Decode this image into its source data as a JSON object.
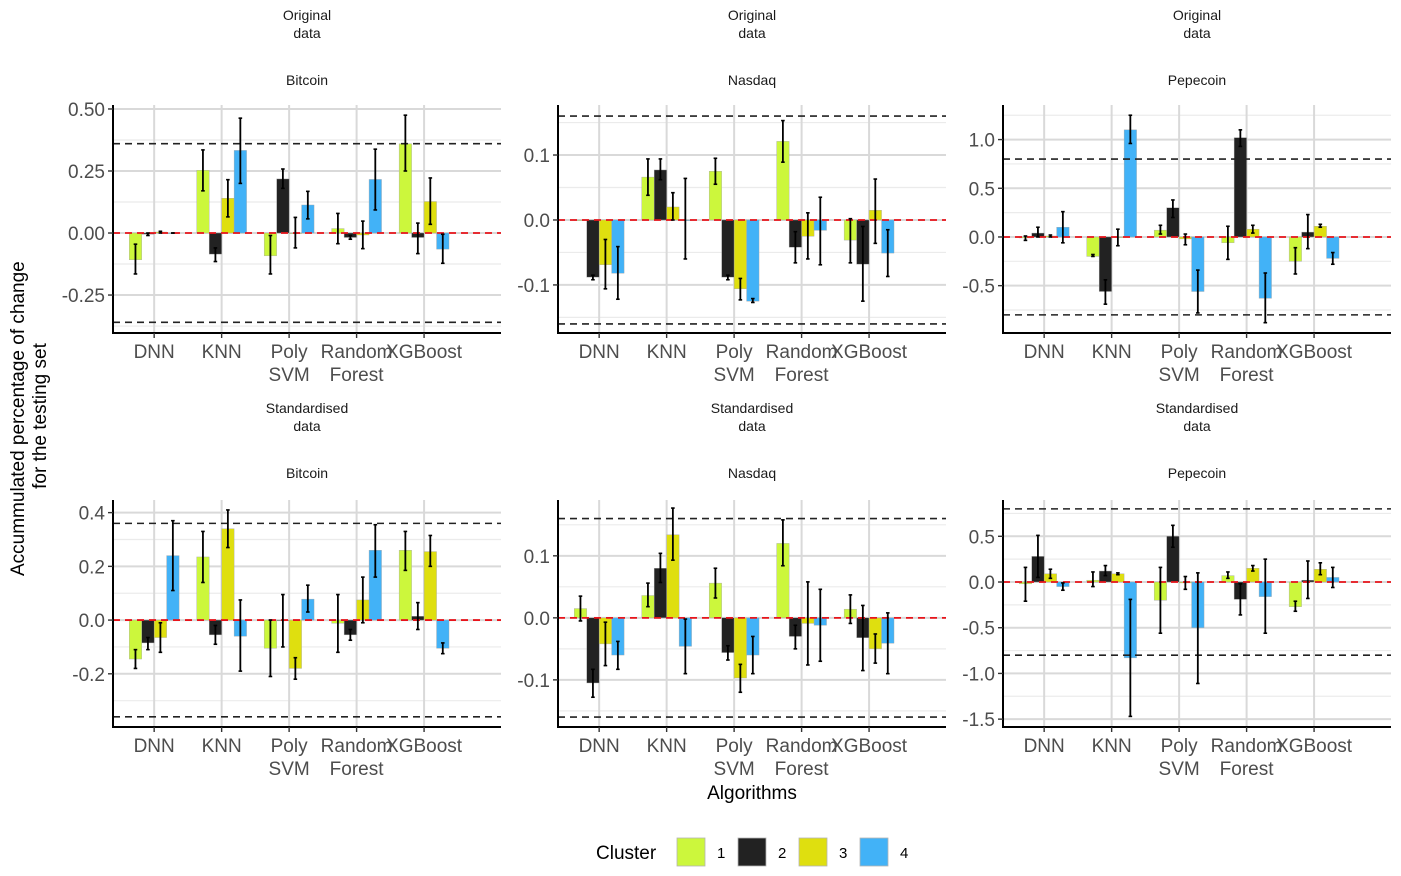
{
  "chart_data": {
    "type": "bar",
    "layout": "facet-grid 2 rows x 3 columns",
    "ylabel": "Accummulated percentage of change\nfor the testing set",
    "xlabel": "Algorithms",
    "categories": [
      "DNN",
      "KNN",
      "Poly\nSVM",
      "Random\nForest",
      "XGBoost"
    ],
    "legend": {
      "title": "Cluster",
      "position": "bottom",
      "entries": [
        {
          "label": "1",
          "color": "#ccf73c"
        },
        {
          "label": "2",
          "color": "#222222"
        },
        {
          "label": "3",
          "color": "#dfdf0f"
        },
        {
          "label": "4",
          "color": "#42b2f7"
        }
      ]
    },
    "reference_lines": {
      "zero_color": "#e8141b",
      "band_color": "#222222"
    },
    "panels": [
      {
        "strip_top": "Original\ndata",
        "strip_sub": "Bitcoin",
        "ylim": [
          -0.403,
          0.516
        ],
        "yticks": [
          -0.25,
          0,
          0.25,
          0.5
        ],
        "ytick_labels": [
          "-0.25",
          "0.00",
          "0.25",
          "0.50"
        ],
        "band": 0.36,
        "series": [
          {
            "name": "1",
            "values": [
              -0.108,
              0.253,
              -0.092,
              0.018,
              0.36
            ],
            "lower": [
              -0.165,
              0.17,
              -0.165,
              -0.043,
              0.25
            ],
            "upper": [
              -0.045,
              0.335,
              -0.01,
              0.079,
              0.475
            ]
          },
          {
            "name": "2",
            "values": [
              -0.005,
              -0.085,
              0.218,
              -0.018,
              -0.018
            ],
            "lower": [
              -0.01,
              -0.115,
              0.18,
              -0.025,
              -0.083
            ],
            "upper": [
              0.0,
              -0.06,
              0.258,
              -0.01,
              0.04
            ]
          },
          {
            "name": "3",
            "values": [
              0.004,
              0.14,
              0.0,
              -0.008,
              0.127
            ],
            "lower": [
              0.0,
              0.065,
              -0.06,
              -0.063,
              0.035
            ],
            "upper": [
              0.007,
              0.215,
              0.063,
              0.048,
              0.222
            ]
          },
          {
            "name": "4",
            "values": [
              0.0,
              0.333,
              0.113,
              0.216,
              -0.065
            ],
            "lower": [
              0.0,
              0.2,
              0.057,
              0.093,
              -0.122
            ],
            "upper": [
              0.0,
              0.463,
              0.168,
              0.338,
              -0.005
            ]
          }
        ]
      },
      {
        "strip_top": "Original\ndata",
        "strip_sub": "Nasdaq",
        "ylim": [
          -0.174,
          0.177
        ],
        "yticks": [
          -0.1,
          0,
          0.1
        ],
        "ytick_labels": [
          "-0.1",
          "0.0",
          "0.1"
        ],
        "band": 0.16,
        "series": [
          {
            "name": "1",
            "values": [
              0.0,
              0.066,
              0.075,
              0.121,
              -0.031
            ],
            "lower": [
              null,
              0.038,
              0.055,
              0.089,
              -0.066
            ],
            "upper": [
              null,
              0.094,
              0.095,
              0.153,
              0.002
            ]
          },
          {
            "name": "2",
            "values": [
              -0.088,
              0.077,
              -0.088,
              -0.042,
              -0.068
            ],
            "lower": [
              -0.092,
              0.062,
              -0.092,
              -0.066,
              -0.125
            ],
            "upper": [
              -0.085,
              0.094,
              -0.085,
              -0.018,
              -0.01
            ]
          },
          {
            "name": "3",
            "values": [
              -0.069,
              0.02,
              -0.106,
              -0.025,
              0.015
            ],
            "lower": [
              -0.106,
              0.0,
              -0.123,
              -0.06,
              -0.036
            ],
            "upper": [
              -0.03,
              0.042,
              -0.09,
              0.011,
              0.063
            ]
          },
          {
            "name": "4",
            "values": [
              -0.082,
              -0.001,
              -0.125,
              -0.016,
              -0.051
            ],
            "lower": [
              -0.122,
              -0.06,
              -0.127,
              -0.069,
              -0.087
            ],
            "upper": [
              -0.041,
              0.064,
              -0.121,
              0.035,
              -0.015
            ]
          }
        ]
      },
      {
        "strip_top": "Original\ndata",
        "strip_sub": "Pepecoin",
        "ylim": [
          -0.986,
          1.355
        ],
        "yticks": [
          -0.5,
          0,
          0.5,
          1.0
        ],
        "ytick_labels": [
          "-0.5",
          "0.0",
          "0.5",
          "1.0"
        ],
        "band": 0.8,
        "series": [
          {
            "name": "1",
            "values": [
              -0.01,
              -0.2,
              0.07,
              -0.06,
              -0.25
            ],
            "lower": [
              -0.035,
              -0.2,
              0.03,
              -0.23,
              -0.38
            ],
            "upper": [
              0.01,
              -0.18,
              0.12,
              0.11,
              -0.11
            ]
          },
          {
            "name": "2",
            "values": [
              0.04,
              -0.56,
              0.3,
              1.02,
              0.05
            ],
            "lower": [
              0.0,
              -0.69,
              0.2,
              0.93,
              -0.12
            ],
            "upper": [
              0.1,
              -0.44,
              0.38,
              1.1,
              0.23
            ]
          },
          {
            "name": "3",
            "values": [
              0.01,
              0.0,
              -0.02,
              0.08,
              0.11
            ],
            "lower": [
              0.0,
              -0.09,
              -0.08,
              0.04,
              0.1
            ],
            "upper": [
              0.02,
              0.08,
              0.03,
              0.12,
              0.13
            ]
          },
          {
            "name": "4",
            "values": [
              0.1,
              1.1,
              -0.56,
              -0.63,
              -0.22
            ],
            "lower": [
              -0.06,
              0.96,
              -0.78,
              -0.88,
              -0.28
            ],
            "upper": [
              0.26,
              1.25,
              -0.34,
              -0.37,
              -0.16
            ]
          }
        ]
      },
      {
        "strip_top": "Standardised\ndata",
        "strip_sub": "Bitcoin",
        "ylim": [
          -0.398,
          0.447
        ],
        "yticks": [
          -0.2,
          0,
          0.2,
          0.4
        ],
        "ytick_labels": [
          "-0.2",
          "0.0",
          "0.2",
          "0.4"
        ],
        "band": 0.36,
        "series": [
          {
            "name": "1",
            "values": [
              -0.145,
              0.235,
              -0.105,
              -0.012,
              0.26
            ],
            "lower": [
              -0.18,
              0.14,
              -0.21,
              -0.12,
              0.185
            ],
            "upper": [
              -0.11,
              0.33,
              0.0,
              0.095,
              0.33
            ]
          },
          {
            "name": "2",
            "values": [
              -0.085,
              -0.055,
              0.0,
              -0.055,
              0.014
            ],
            "lower": [
              -0.11,
              -0.09,
              -0.1,
              -0.075,
              -0.035
            ],
            "upper": [
              -0.065,
              -0.02,
              0.095,
              -0.035,
              0.065
            ]
          },
          {
            "name": "3",
            "values": [
              -0.065,
              0.34,
              -0.18,
              0.075,
              0.255
            ],
            "lower": [
              -0.12,
              0.27,
              -0.22,
              -0.01,
              0.2
            ],
            "upper": [
              -0.01,
              0.41,
              -0.14,
              0.16,
              0.315
            ]
          },
          {
            "name": "4",
            "values": [
              0.24,
              -0.06,
              0.078,
              0.26,
              -0.105
            ],
            "lower": [
              0.11,
              -0.19,
              0.03,
              0.16,
              -0.125
            ],
            "upper": [
              0.37,
              0.075,
              0.13,
              0.355,
              -0.085
            ]
          }
        ]
      },
      {
        "strip_top": "Standardised\ndata",
        "strip_sub": "Nasdaq",
        "ylim": [
          -0.176,
          0.19
        ],
        "yticks": [
          -0.1,
          0,
          0.1
        ],
        "ytick_labels": [
          "-0.1",
          "0.0",
          "0.1"
        ],
        "band": 0.16,
        "series": [
          {
            "name": "1",
            "values": [
              0.015,
              0.036,
              0.056,
              0.12,
              0.014
            ],
            "lower": [
              -0.005,
              0.018,
              0.032,
              0.084,
              -0.009
            ],
            "upper": [
              0.035,
              0.056,
              0.08,
              0.158,
              0.037
            ]
          },
          {
            "name": "2",
            "values": [
              -0.105,
              0.08,
              -0.056,
              -0.03,
              -0.032
            ],
            "lower": [
              -0.128,
              0.057,
              -0.068,
              -0.05,
              -0.085
            ],
            "upper": [
              -0.083,
              0.104,
              -0.045,
              -0.012,
              0.02
            ]
          },
          {
            "name": "3",
            "values": [
              -0.042,
              0.134,
              -0.097,
              -0.009,
              -0.05
            ],
            "lower": [
              -0.077,
              0.093,
              -0.12,
              -0.076,
              -0.073
            ],
            "upper": [
              -0.007,
              0.177,
              -0.075,
              0.058,
              -0.026
            ]
          },
          {
            "name": "4",
            "values": [
              -0.06,
              -0.046,
              -0.06,
              -0.012,
              -0.041
            ],
            "lower": [
              -0.083,
              -0.09,
              -0.09,
              -0.07,
              -0.09
            ],
            "upper": [
              -0.038,
              -0.002,
              -0.03,
              0.046,
              0.008
            ]
          }
        ]
      },
      {
        "strip_top": "Standardised\ndata",
        "strip_sub": "Pepecoin",
        "ylim": [
          -1.586,
          0.897
        ],
        "yticks": [
          -1.5,
          -1.0,
          -0.5,
          0,
          0.5
        ],
        "ytick_labels": [
          "-1.5",
          "-1.0",
          "-0.5",
          "0.0",
          "0.5"
        ],
        "band": 0.8,
        "series": [
          {
            "name": "1",
            "values": [
              -0.02,
              0.02,
              -0.2,
              0.07,
              -0.27
            ],
            "lower": [
              -0.21,
              -0.05,
              -0.56,
              0.04,
              -0.32
            ],
            "upper": [
              0.16,
              0.11,
              0.16,
              0.11,
              -0.21
            ]
          },
          {
            "name": "2",
            "values": [
              0.28,
              0.12,
              0.5,
              -0.19,
              0.02
            ],
            "lower": [
              0.05,
              0.07,
              0.38,
              -0.36,
              -0.18
            ],
            "upper": [
              0.51,
              0.18,
              0.62,
              -0.02,
              0.23
            ]
          },
          {
            "name": "3",
            "values": [
              0.09,
              0.09,
              -0.01,
              0.15,
              0.14
            ],
            "lower": [
              0.04,
              0.08,
              -0.08,
              0.12,
              0.08
            ],
            "upper": [
              0.14,
              0.1,
              0.06,
              0.18,
              0.21
            ]
          },
          {
            "name": "4",
            "values": [
              -0.05,
              -0.83,
              -0.5,
              -0.16,
              0.05
            ],
            "lower": [
              -0.09,
              -1.47,
              -1.11,
              -0.56,
              -0.06
            ],
            "upper": [
              -0.01,
              -0.19,
              0.1,
              0.25,
              0.16
            ]
          }
        ]
      }
    ]
  }
}
